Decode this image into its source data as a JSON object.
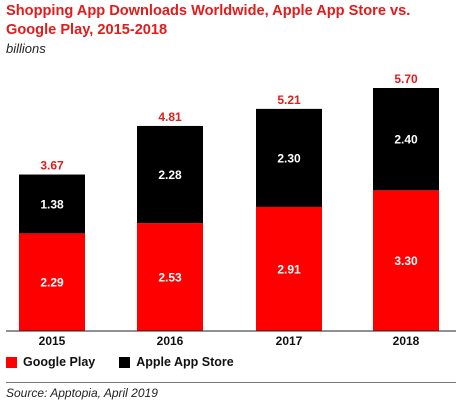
{
  "chart_data": {
    "type": "bar",
    "stacked": true,
    "title": "Shopping App Downloads Worldwide, Apple App Store vs. Google Play, 2015-2018",
    "subtitle": "billions",
    "categories": [
      "2015",
      "2016",
      "2017",
      "2018"
    ],
    "series": [
      {
        "name": "Google Play",
        "color": "#ff0000",
        "values": [
          2.29,
          2.53,
          2.91,
          3.3
        ],
        "labels": [
          "2.29",
          "2.53",
          "2.91",
          "3.30"
        ]
      },
      {
        "name": "Apple App Store",
        "color": "#000000",
        "values": [
          1.38,
          2.28,
          2.3,
          2.4
        ],
        "labels": [
          "1.38",
          "2.28",
          "2.30",
          "2.40"
        ]
      }
    ],
    "totals": [
      "3.67",
      "4.81",
      "5.21",
      "5.70"
    ],
    "total_color": "#e21b1b",
    "legend_position": "bottom-left",
    "source": "Source: Apptopia, April 2019"
  }
}
